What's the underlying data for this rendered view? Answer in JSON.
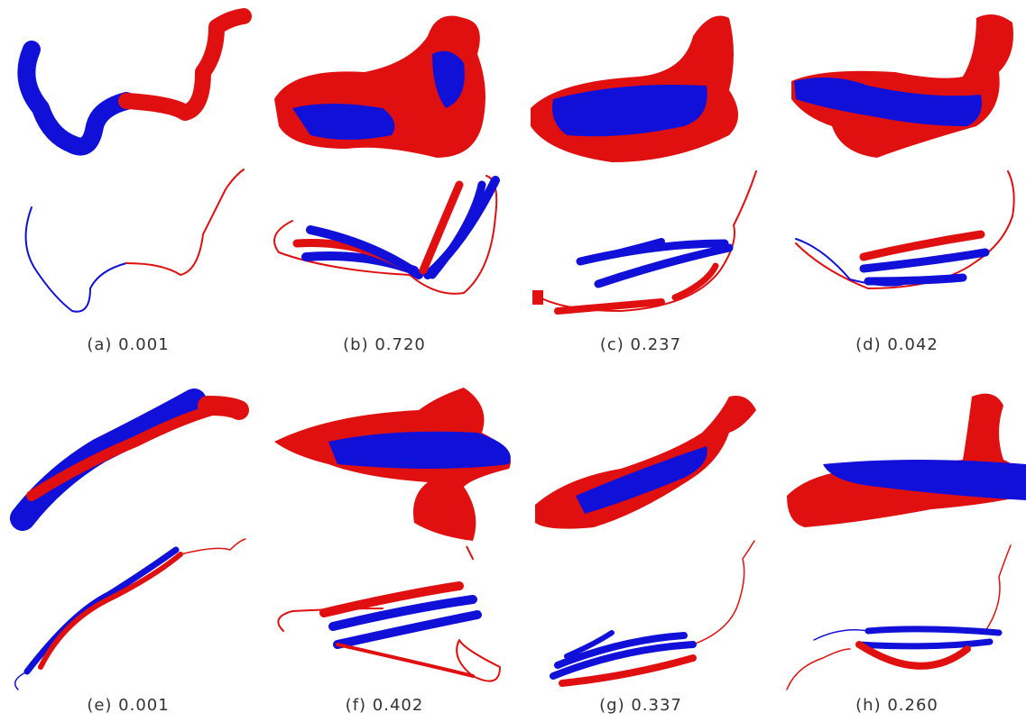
{
  "panels": [
    {
      "caption": "(a) 0.001"
    },
    {
      "caption": "(b) 0.720"
    },
    {
      "caption": "(c) 0.237"
    },
    {
      "caption": "(d) 0.042"
    },
    {
      "caption": "(e) 0.001"
    },
    {
      "caption": "(f) 0.402"
    },
    {
      "caption": "(g) 0.337"
    },
    {
      "caption": "(h) 0.260"
    }
  ]
}
